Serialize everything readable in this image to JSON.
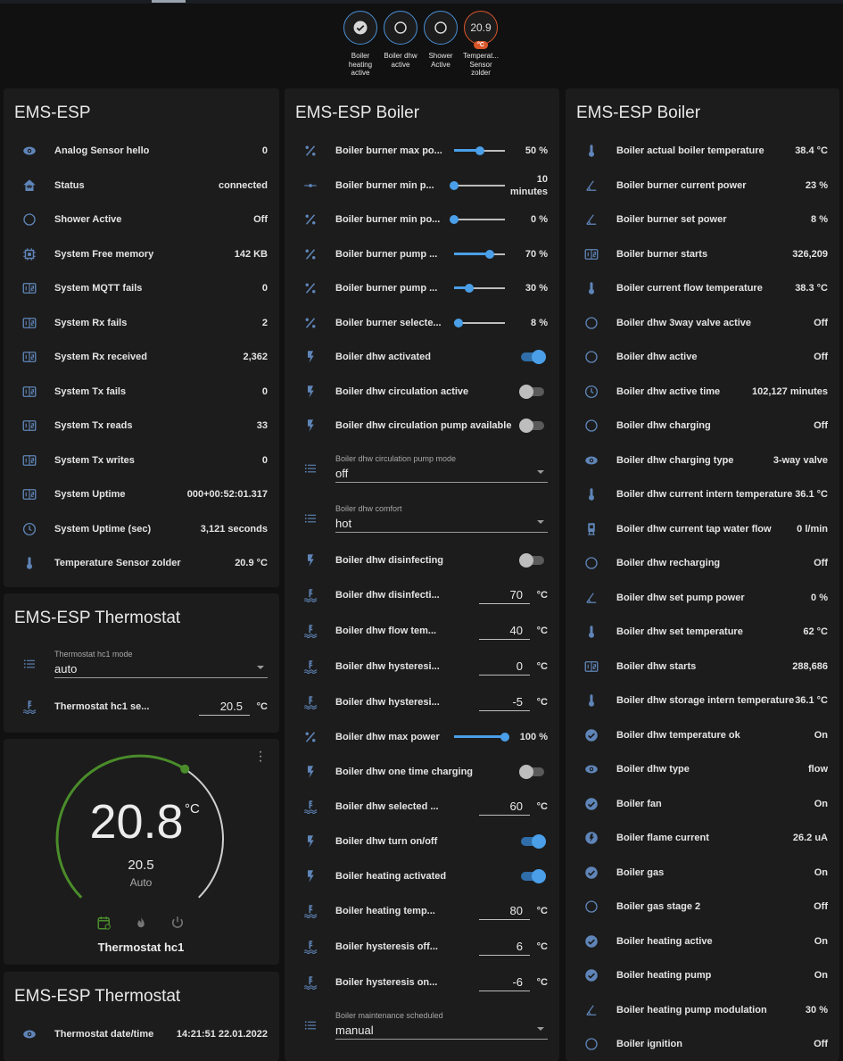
{
  "colors": {
    "accent": "#4a9fe8",
    "icon": "#5f85b8",
    "badge_border": "#4a8fd6",
    "temperature_badge": "#d9562a",
    "heat_green": "#4a8c2a"
  },
  "badges": [
    {
      "label": "Boiler heating active",
      "icon": "check-circle"
    },
    {
      "label": "Boiler dhw active",
      "icon": "circle-outline"
    },
    {
      "label": "Shower Active",
      "icon": "circle-outline"
    },
    {
      "label": "Temperat... Sensor zolder",
      "value": "20.9",
      "unit": "°C"
    }
  ],
  "card_ems_esp": {
    "title": "EMS-ESP",
    "rows": [
      {
        "icon": "eye",
        "label": "Analog Sensor hello",
        "value": "0"
      },
      {
        "icon": "home",
        "label": "Status",
        "value": "connected"
      },
      {
        "icon": "circle",
        "label": "Shower Active",
        "value": "Off"
      },
      {
        "icon": "chip",
        "label": "System Free memory",
        "value": "142 KB"
      },
      {
        "icon": "counter",
        "label": "System MQTT fails",
        "value": "0"
      },
      {
        "icon": "counter",
        "label": "System Rx fails",
        "value": "2"
      },
      {
        "icon": "counter",
        "label": "System Rx received",
        "value": "2,362"
      },
      {
        "icon": "counter",
        "label": "System Tx fails",
        "value": "0"
      },
      {
        "icon": "counter",
        "label": "System Tx reads",
        "value": "33"
      },
      {
        "icon": "counter",
        "label": "System Tx writes",
        "value": "0"
      },
      {
        "icon": "counter",
        "label": "System Uptime",
        "value": "000+00:52:01.317"
      },
      {
        "icon": "clock",
        "label": "System Uptime (sec)",
        "value": "3,121 seconds"
      },
      {
        "icon": "thermometer",
        "label": "Temperature Sensor zolder",
        "value": "20.9 °C"
      }
    ]
  },
  "card_thermostat": {
    "title": "EMS-ESP Thermostat",
    "rows": [
      {
        "type": "select",
        "icon": "list",
        "label": "Thermostat hc1 mode",
        "value": "auto"
      },
      {
        "type": "number",
        "icon": "water-thermometer",
        "label": "Thermostat hc1 se...",
        "value": "20.5",
        "unit": "°C"
      }
    ]
  },
  "thermostat_dial": {
    "current": "20.8",
    "unit": "°C",
    "target": "20.5",
    "mode": "Auto",
    "name": "Thermostat hc1",
    "modes": [
      "auto",
      "heat",
      "off"
    ],
    "active_mode": "auto"
  },
  "card_thermostat2": {
    "title": "EMS-ESP Thermostat",
    "rows": [
      {
        "icon": "eye",
        "label": "Thermostat date/time",
        "value": "14:21:51 22.01.2022"
      }
    ]
  },
  "card_boiler_controls": {
    "title": "EMS-ESP Boiler",
    "rows": [
      {
        "type": "slider",
        "icon": "percent",
        "label": "Boiler burner max po...",
        "value": "50 %",
        "fraction": 0.5
      },
      {
        "type": "slider",
        "icon": "slider",
        "label": "Boiler burner min p...",
        "value": "10 minutes",
        "fraction": 0
      },
      {
        "type": "slider",
        "icon": "percent",
        "label": "Boiler burner min po...",
        "value": "0 %",
        "fraction": 0
      },
      {
        "type": "slider",
        "icon": "percent",
        "label": "Boiler burner pump ...",
        "value": "70 %",
        "fraction": 0.7
      },
      {
        "type": "slider",
        "icon": "percent",
        "label": "Boiler burner pump ...",
        "value": "30 %",
        "fraction": 0.3
      },
      {
        "type": "slider",
        "icon": "percent",
        "label": "Boiler burner selecte...",
        "value": "8 %",
        "fraction": 0.08
      },
      {
        "type": "toggle",
        "icon": "flash",
        "label": "Boiler dhw activated",
        "on": true
      },
      {
        "type": "toggle",
        "icon": "flash",
        "label": "Boiler dhw circulation active",
        "on": false
      },
      {
        "type": "toggle",
        "icon": "flash",
        "label": "Boiler dhw circulation pump available",
        "on": false
      },
      {
        "type": "select",
        "icon": "list",
        "label": "Boiler dhw circulation pump mode",
        "value": "off"
      },
      {
        "type": "select",
        "icon": "list",
        "label": "Boiler dhw comfort",
        "value": "hot"
      },
      {
        "type": "toggle",
        "icon": "flash",
        "label": "Boiler dhw disinfecting",
        "on": false
      },
      {
        "type": "number",
        "icon": "water-thermometer",
        "label": "Boiler dhw disinfecti...",
        "value": "70",
        "unit": "°C"
      },
      {
        "type": "number",
        "icon": "water-thermometer",
        "label": "Boiler dhw flow tem...",
        "value": "40",
        "unit": "°C"
      },
      {
        "type": "number",
        "icon": "water-thermometer",
        "label": "Boiler dhw hysteresi...",
        "value": "0",
        "unit": "°C"
      },
      {
        "type": "number",
        "icon": "water-thermometer",
        "label": "Boiler dhw hysteresi...",
        "value": "-5",
        "unit": "°C"
      },
      {
        "type": "slider",
        "icon": "percent",
        "label": "Boiler dhw max power",
        "value": "100 %",
        "fraction": 1
      },
      {
        "type": "toggle",
        "icon": "flash",
        "label": "Boiler dhw one time charging",
        "on": false
      },
      {
        "type": "number",
        "icon": "water-thermometer",
        "label": "Boiler dhw selected ...",
        "value": "60",
        "unit": "°C"
      },
      {
        "type": "toggle",
        "icon": "flash",
        "label": "Boiler dhw turn on/off",
        "on": true
      },
      {
        "type": "toggle",
        "icon": "flash",
        "label": "Boiler heating activated",
        "on": true
      },
      {
        "type": "number",
        "icon": "water-thermometer",
        "label": "Boiler heating temp...",
        "value": "80",
        "unit": "°C"
      },
      {
        "type": "number",
        "icon": "water-thermometer",
        "label": "Boiler hysteresis off...",
        "value": "6",
        "unit": "°C"
      },
      {
        "type": "number",
        "icon": "water-thermometer",
        "label": "Boiler hysteresis on...",
        "value": "-6",
        "unit": "°C"
      },
      {
        "type": "select",
        "icon": "list",
        "label": "Boiler maintenance scheduled",
        "value": "manual"
      }
    ]
  },
  "card_boiler_sensors": {
    "title": "EMS-ESP Boiler",
    "rows": [
      {
        "icon": "thermometer",
        "label": "Boiler actual boiler temperature",
        "value": "38.4 °C"
      },
      {
        "icon": "gauge",
        "label": "Boiler burner current power",
        "value": "23 %"
      },
      {
        "icon": "gauge",
        "label": "Boiler burner set power",
        "value": "8 %"
      },
      {
        "icon": "counter",
        "label": "Boiler burner starts",
        "value": "326,209"
      },
      {
        "icon": "thermometer",
        "label": "Boiler current flow temperature",
        "value": "38.3 °C"
      },
      {
        "icon": "circle",
        "label": "Boiler dhw 3way valve active",
        "value": "Off"
      },
      {
        "icon": "circle",
        "label": "Boiler dhw active",
        "value": "Off"
      },
      {
        "icon": "clock",
        "label": "Boiler dhw active time",
        "value": "102,127 minutes"
      },
      {
        "icon": "circle",
        "label": "Boiler dhw charging",
        "value": "Off"
      },
      {
        "icon": "eye",
        "label": "Boiler dhw charging type",
        "value": "3-way valve"
      },
      {
        "icon": "thermometer",
        "label": "Boiler dhw current intern temperature",
        "value": "36.1 °C"
      },
      {
        "icon": "pump",
        "label": "Boiler dhw current tap water flow",
        "value": "0 l/min"
      },
      {
        "icon": "circle",
        "label": "Boiler dhw recharging",
        "value": "Off"
      },
      {
        "icon": "gauge",
        "label": "Boiler dhw set pump power",
        "value": "0 %"
      },
      {
        "icon": "thermometer",
        "label": "Boiler dhw set temperature",
        "value": "62 °C"
      },
      {
        "icon": "counter",
        "label": "Boiler dhw starts",
        "value": "288,686"
      },
      {
        "icon": "thermometer",
        "label": "Boiler dhw storage intern temperature",
        "value": "36.1 °C"
      },
      {
        "icon": "check-circle",
        "label": "Boiler dhw temperature ok",
        "value": "On"
      },
      {
        "icon": "eye",
        "label": "Boiler dhw type",
        "value": "flow"
      },
      {
        "icon": "check-circle",
        "label": "Boiler fan",
        "value": "On"
      },
      {
        "icon": "flash-circle",
        "label": "Boiler flame current",
        "value": "26.2 uA"
      },
      {
        "icon": "check-circle",
        "label": "Boiler gas",
        "value": "On"
      },
      {
        "icon": "circle",
        "label": "Boiler gas stage 2",
        "value": "Off"
      },
      {
        "icon": "check-circle",
        "label": "Boiler heating active",
        "value": "On"
      },
      {
        "icon": "check-circle",
        "label": "Boiler heating pump",
        "value": "On"
      },
      {
        "icon": "gauge",
        "label": "Boiler heating pump modulation",
        "value": "30 %"
      },
      {
        "icon": "circle",
        "label": "Boiler ignition",
        "value": "Off"
      }
    ]
  }
}
